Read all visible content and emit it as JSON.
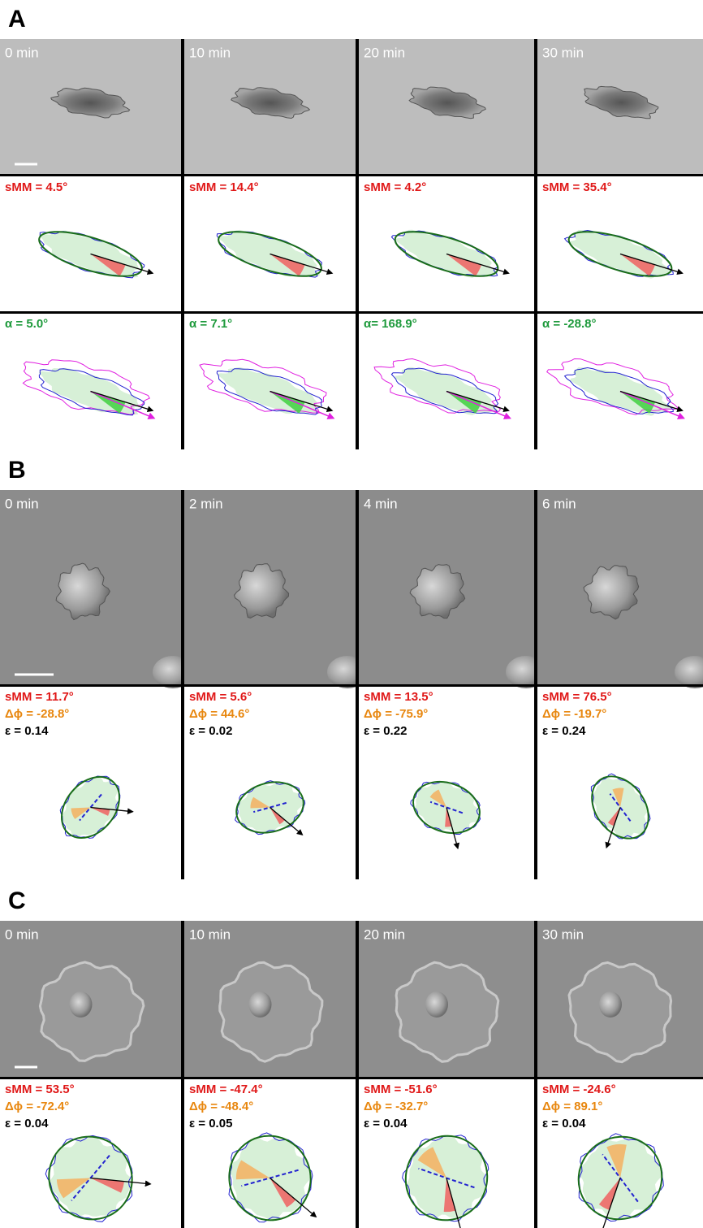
{
  "panels": [
    {
      "label": "A",
      "columns": [
        {
          "time": "0 min",
          "smm": "sMM = 4.5°",
          "alpha": "α = 5.0°"
        },
        {
          "time": "10 min",
          "smm": "sMM = 14.4°",
          "alpha": "α = 7.1°"
        },
        {
          "time": "20 min",
          "smm": "sMM = 4.2°",
          "alpha": "α= 168.9°"
        },
        {
          "time": "30 min",
          "smm": "sMM = 35.4°",
          "alpha": "α = -28.8°"
        }
      ]
    },
    {
      "label": "B",
      "columns": [
        {
          "time": "0 min",
          "smm": "sMM = 11.7°",
          "dphi": "Δϕ = -28.8°",
          "eps": "ε = 0.14"
        },
        {
          "time": "2 min",
          "smm": "sMM = 5.6°",
          "dphi": "Δϕ = 44.6°",
          "eps": "ε = 0.02"
        },
        {
          "time": "4 min",
          "smm": "sMM = 13.5°",
          "dphi": "Δϕ = -75.9°",
          "eps": "ε = 0.22"
        },
        {
          "time": "6 min",
          "smm": "sMM = 76.5°",
          "dphi": "Δϕ = -19.7°",
          "eps": "ε = 0.24"
        }
      ]
    },
    {
      "label": "C",
      "columns": [
        {
          "time": "0 min",
          "smm": "sMM = 53.5°",
          "dphi": "Δϕ = -72.4°",
          "eps": "ε = 0.04"
        },
        {
          "time": "10 min",
          "smm": "sMM = -47.4°",
          "dphi": "Δϕ = -48.4°",
          "eps": "ε = 0.05"
        },
        {
          "time": "20 min",
          "smm": "sMM = -51.6°",
          "dphi": "Δϕ = -32.7°",
          "eps": "ε = 0.04"
        },
        {
          "time": "30 min",
          "smm": "sMM = -24.6°",
          "dphi": "Δϕ = 89.1°",
          "eps": "ε = 0.04"
        }
      ]
    }
  ]
}
